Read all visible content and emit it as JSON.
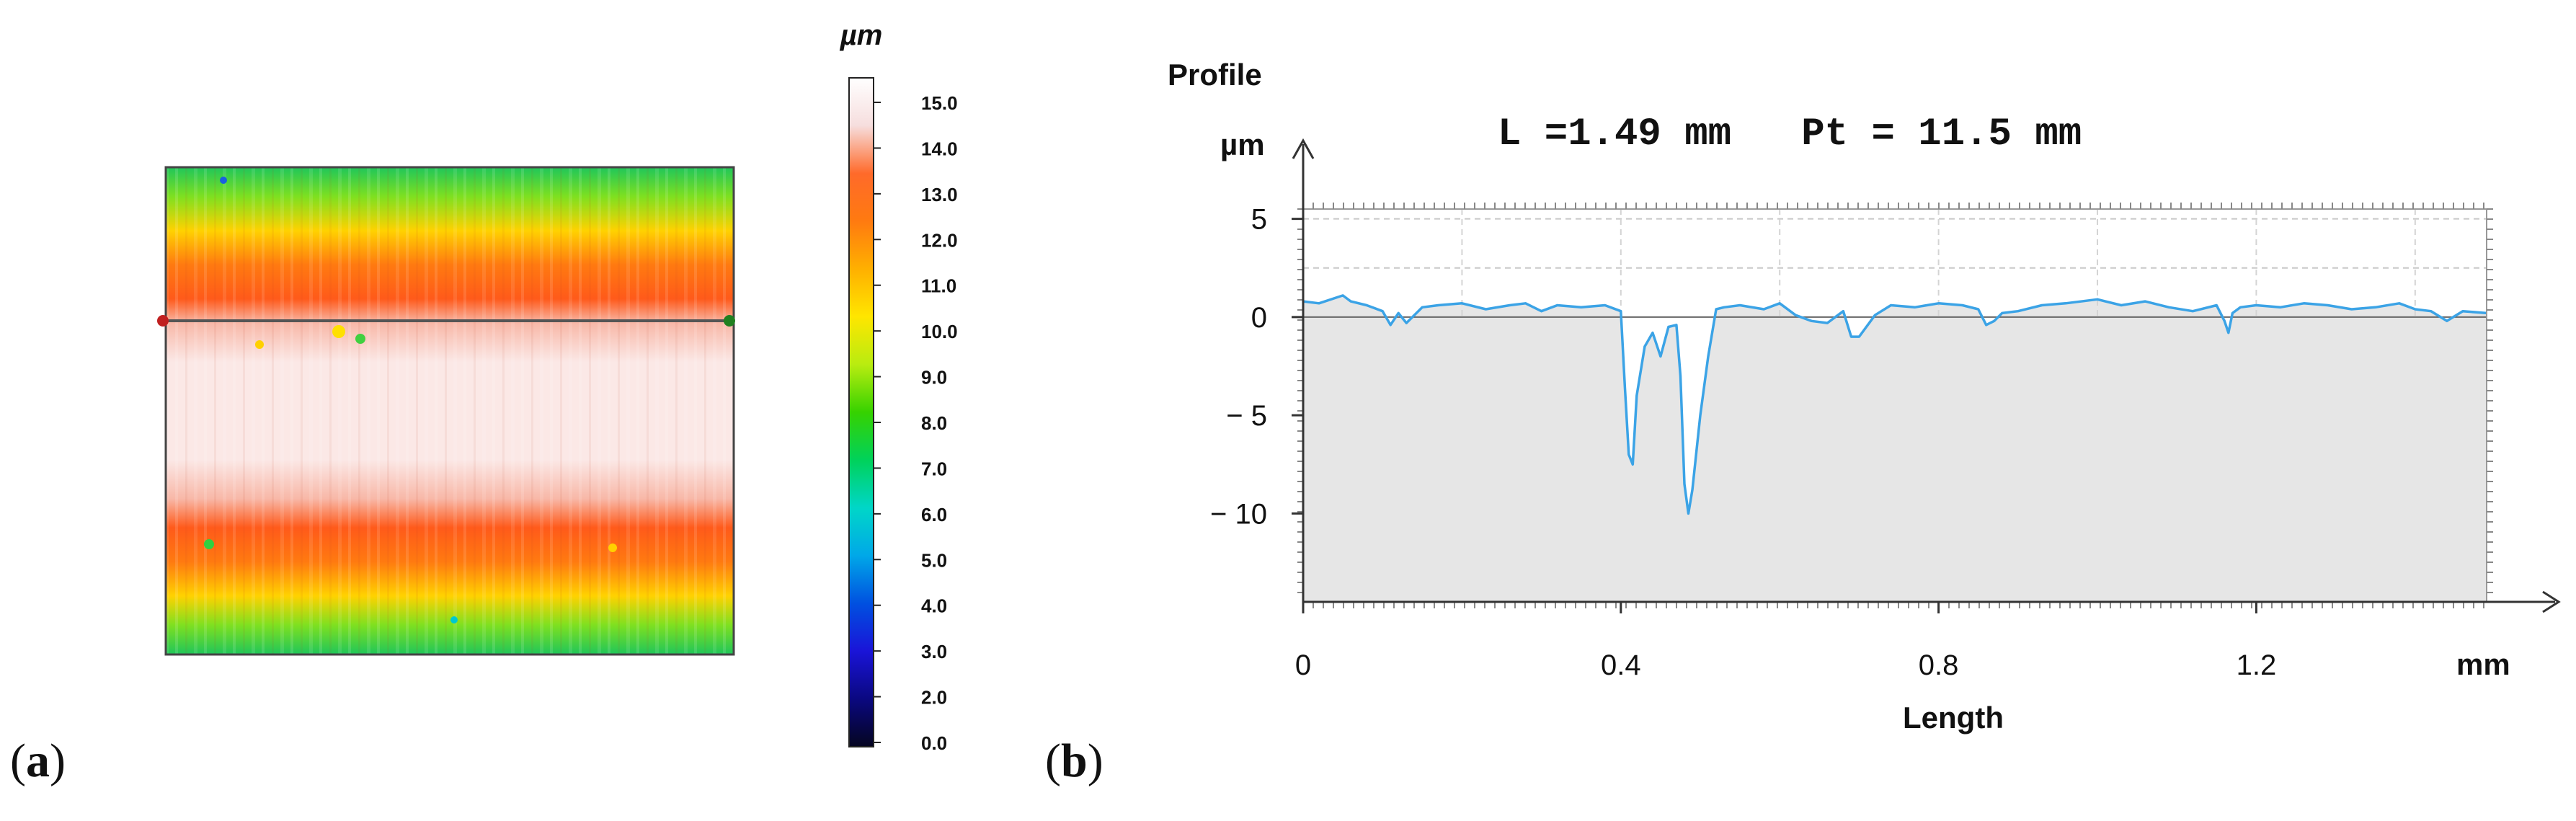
{
  "panel_labels": {
    "a": {
      "open": "(",
      "letter": "a",
      "close": ")"
    },
    "b": {
      "open": "(",
      "letter": "b",
      "close": ")"
    }
  },
  "colorbar": {
    "unit": "µm",
    "ticks": [
      "15.0",
      "14.0",
      "13.0",
      "12.0",
      "11.0",
      "10.0",
      "9.0",
      "8.0",
      "7.0",
      "6.0",
      "5.0",
      "4.0",
      "3.0",
      "2.0",
      "0.0"
    ],
    "colors": [
      "#ffffff",
      "#f6dede",
      "#ff6a2a",
      "#ff7a10",
      "#ffb000",
      "#ffe600",
      "#b8ec10",
      "#36d200",
      "#00d25a",
      "#00d6c8",
      "#00a8e8",
      "#0050e0",
      "#1a14d8",
      "#0a0880",
      "#050520"
    ]
  },
  "chart_data": {
    "type": "line",
    "ylabel_top": "Profile",
    "ylabel_unit": "µm",
    "xlabel": "Length",
    "xunit": "mm",
    "header": "L =1.49 mm   Pt = 11.5 mm",
    "xlim": [
      0,
      1.49
    ],
    "ylim": [
      -14.5,
      5.5
    ],
    "xticks": [
      {
        "v": 0,
        "label": "0"
      },
      {
        "v": 0.4,
        "label": "0.4"
      },
      {
        "v": 0.8,
        "label": "0.8"
      },
      {
        "v": 1.2,
        "label": "1.2"
      }
    ],
    "yticks": [
      {
        "v": 5,
        "label": "5"
      },
      {
        "v": 0,
        "label": "0"
      },
      {
        "v": -5,
        "label": "− 5"
      },
      {
        "v": -10,
        "label": "− 10"
      }
    ],
    "series": [
      {
        "color": "#3ba3e6",
        "x": [
          0,
          0.02,
          0.05,
          0.06,
          0.08,
          0.1,
          0.11,
          0.12,
          0.13,
          0.15,
          0.17,
          0.2,
          0.23,
          0.26,
          0.28,
          0.3,
          0.32,
          0.35,
          0.38,
          0.4,
          0.405,
          0.41,
          0.415,
          0.42,
          0.43,
          0.44,
          0.45,
          0.46,
          0.47,
          0.475,
          0.48,
          0.485,
          0.49,
          0.5,
          0.51,
          0.52,
          0.53,
          0.55,
          0.58,
          0.6,
          0.62,
          0.64,
          0.66,
          0.68,
          0.69,
          0.7,
          0.72,
          0.74,
          0.77,
          0.8,
          0.83,
          0.85,
          0.86,
          0.87,
          0.88,
          0.9,
          0.93,
          0.96,
          1.0,
          1.03,
          1.06,
          1.09,
          1.12,
          1.15,
          1.16,
          1.165,
          1.17,
          1.18,
          1.2,
          1.23,
          1.26,
          1.29,
          1.32,
          1.35,
          1.38,
          1.4,
          1.42,
          1.44,
          1.46,
          1.49
        ],
        "y": [
          0.8,
          0.7,
          1.1,
          0.8,
          0.6,
          0.3,
          -0.4,
          0.2,
          -0.3,
          0.5,
          0.6,
          0.7,
          0.4,
          0.6,
          0.7,
          0.3,
          0.6,
          0.5,
          0.6,
          0.3,
          -3.5,
          -7.0,
          -7.5,
          -4.0,
          -1.5,
          -0.8,
          -2.0,
          -0.5,
          -0.4,
          -3.0,
          -8.5,
          -10.0,
          -8.8,
          -5.0,
          -2.0,
          0.4,
          0.5,
          0.6,
          0.4,
          0.7,
          0.1,
          -0.2,
          -0.3,
          0.3,
          -1.0,
          -1.0,
          0.1,
          0.6,
          0.5,
          0.7,
          0.6,
          0.4,
          -0.4,
          -0.2,
          0.2,
          0.3,
          0.6,
          0.7,
          0.9,
          0.6,
          0.8,
          0.5,
          0.3,
          0.6,
          -0.2,
          -0.8,
          0.2,
          0.5,
          0.6,
          0.5,
          0.7,
          0.6,
          0.4,
          0.5,
          0.7,
          0.4,
          0.3,
          -0.2,
          0.3,
          0.2
        ]
      }
    ],
    "grid": true,
    "fill_below": "#e6e6e6"
  }
}
